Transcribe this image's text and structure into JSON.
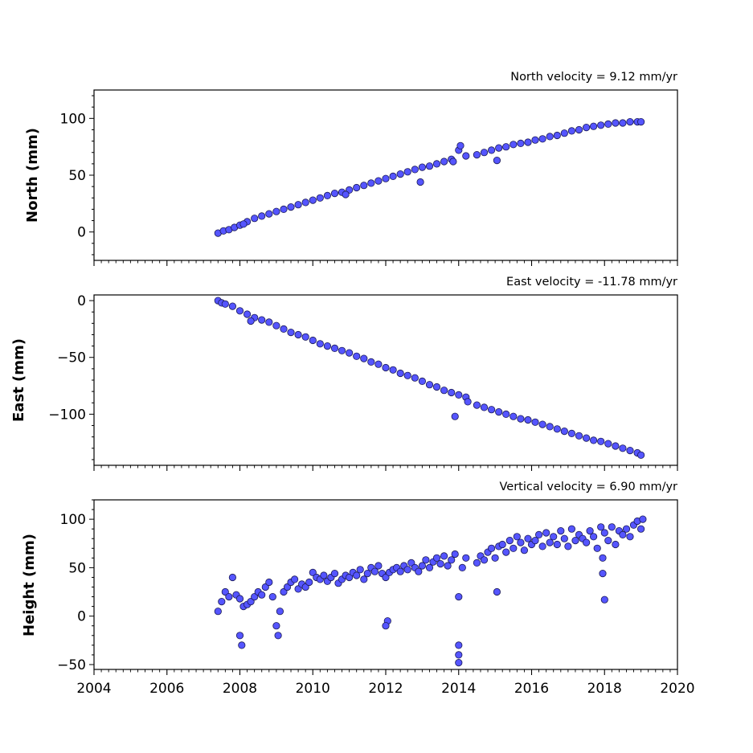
{
  "chart_data": [
    {
      "type": "scatter",
      "title": "North velocity = 9.12 mm/yr",
      "xlabel": "",
      "ylabel": "North (mm)",
      "xlim": [
        2004,
        2020
      ],
      "ylim": [
        -25,
        125
      ],
      "yticks": [
        0,
        50,
        100
      ],
      "xtick_labels_shown": false,
      "marker_color": "#5555ff",
      "marker_edge": "#1a1a55",
      "series": [
        {
          "x": [
            2007.4,
            2007.55,
            2007.7,
            2007.85,
            2008.0,
            2008.2,
            2008.4,
            2008.6,
            2008.8,
            2009.0,
            2009.2,
            2009.4,
            2009.6,
            2009.8,
            2010.0,
            2010.2,
            2010.4,
            2010.6,
            2010.8,
            2011.0,
            2011.2,
            2011.4,
            2011.6,
            2011.8,
            2012.0,
            2012.2,
            2012.4,
            2012.6,
            2012.8,
            2013.0,
            2013.2,
            2013.4,
            2013.6,
            2013.8,
            2014.0,
            2014.05,
            2014.2,
            2014.5,
            2014.7,
            2014.9,
            2015.1,
            2015.3,
            2015.5,
            2015.7,
            2015.9,
            2016.1,
            2016.3,
            2016.5,
            2016.7,
            2016.9,
            2017.1,
            2017.3,
            2017.5,
            2017.7,
            2017.9,
            2018.1,
            2018.3,
            2018.5,
            2018.7,
            2018.9,
            2019.0,
            2008.1,
            2010.9,
            2012.95,
            2015.05,
            2013.85
          ],
          "y": [
            -1,
            1,
            2,
            4,
            6,
            9,
            12,
            14,
            16,
            18,
            20,
            22,
            24,
            26,
            28,
            30,
            32,
            34,
            35,
            37,
            39,
            41,
            43,
            45,
            47,
            49,
            51,
            53,
            55,
            57,
            58,
            60,
            62,
            64,
            72,
            76,
            67,
            68,
            70,
            72,
            74,
            75,
            77,
            78,
            79,
            81,
            82,
            84,
            85,
            87,
            89,
            90,
            92,
            93,
            94,
            95,
            96,
            96,
            97,
            97,
            97,
            7,
            33,
            44,
            63,
            62
          ]
        }
      ]
    },
    {
      "type": "scatter",
      "title": "East velocity = -11.78 mm/yr",
      "xlabel": "",
      "ylabel": "East (mm)",
      "xlim": [
        2004,
        2020
      ],
      "ylim": [
        -145,
        5
      ],
      "yticks": [
        0,
        -50,
        -100
      ],
      "xtick_labels_shown": false,
      "marker_color": "#5555ff",
      "marker_edge": "#1a1a55",
      "series": [
        {
          "x": [
            2007.4,
            2007.5,
            2007.6,
            2007.8,
            2008.0,
            2008.2,
            2008.4,
            2008.6,
            2008.8,
            2009.0,
            2009.2,
            2009.4,
            2009.6,
            2009.8,
            2010.0,
            2010.2,
            2010.4,
            2010.6,
            2010.8,
            2011.0,
            2011.2,
            2011.4,
            2011.6,
            2011.8,
            2012.0,
            2012.2,
            2012.4,
            2012.6,
            2012.8,
            2013.0,
            2013.2,
            2013.4,
            2013.6,
            2013.8,
            2014.0,
            2014.2,
            2014.5,
            2014.7,
            2014.9,
            2015.1,
            2015.3,
            2015.5,
            2015.7,
            2015.9,
            2016.1,
            2016.3,
            2016.5,
            2016.7,
            2016.9,
            2017.1,
            2017.3,
            2017.5,
            2017.7,
            2017.9,
            2018.1,
            2018.3,
            2018.5,
            2018.7,
            2018.9,
            2019.0,
            2008.3,
            2013.9,
            2014.25
          ],
          "y": [
            0,
            -2,
            -3,
            -5,
            -9,
            -12,
            -15,
            -17,
            -19,
            -22,
            -25,
            -28,
            -30,
            -32,
            -35,
            -38,
            -40,
            -42,
            -44,
            -46,
            -49,
            -51,
            -54,
            -56,
            -59,
            -61,
            -64,
            -66,
            -68,
            -71,
            -74,
            -76,
            -79,
            -81,
            -83,
            -85,
            -92,
            -94,
            -96,
            -98,
            -100,
            -102,
            -104,
            -105,
            -107,
            -109,
            -111,
            -113,
            -115,
            -117,
            -119,
            -121,
            -123,
            -124,
            -126,
            -128,
            -130,
            -132,
            -134,
            -136,
            -18,
            -102,
            -89
          ]
        }
      ]
    },
    {
      "type": "scatter",
      "title": "Vertical velocity = 6.90 mm/yr",
      "xlabel": "",
      "ylabel": "Height (mm)",
      "xlim": [
        2004,
        2020
      ],
      "ylim": [
        -55,
        120
      ],
      "yticks": [
        -50,
        0,
        50,
        100
      ],
      "xticks": [
        2004,
        2006,
        2008,
        2010,
        2012,
        2014,
        2016,
        2018,
        2020
      ],
      "xtick_labels_shown": true,
      "marker_color": "#5555ff",
      "marker_edge": "#1a1a55",
      "series": [
        {
          "x": [
            2007.4,
            2007.5,
            2007.6,
            2007.7,
            2007.8,
            2007.9,
            2008.0,
            2008.1,
            2008.2,
            2008.3,
            2008.4,
            2008.5,
            2008.6,
            2008.7,
            2008.8,
            2008.9,
            2009.0,
            2009.05,
            2009.1,
            2009.2,
            2009.3,
            2009.4,
            2009.5,
            2009.6,
            2009.7,
            2009.8,
            2009.9,
            2010.0,
            2010.1,
            2010.2,
            2010.3,
            2010.4,
            2010.5,
            2010.6,
            2010.7,
            2010.8,
            2010.9,
            2011.0,
            2011.1,
            2011.2,
            2011.3,
            2011.4,
            2011.5,
            2011.6,
            2011.7,
            2011.8,
            2011.9,
            2012.0,
            2012.05,
            2012.1,
            2012.2,
            2012.3,
            2012.4,
            2012.5,
            2012.6,
            2012.7,
            2012.8,
            2012.9,
            2013.0,
            2013.1,
            2013.2,
            2013.3,
            2013.4,
            2013.5,
            2013.6,
            2013.7,
            2013.8,
            2013.9,
            2014.0,
            2014.0,
            2014.0,
            2014.1,
            2014.2,
            2014.5,
            2014.6,
            2014.7,
            2014.8,
            2014.9,
            2015.0,
            2015.05,
            2015.1,
            2015.2,
            2015.3,
            2015.4,
            2015.5,
            2015.6,
            2015.7,
            2015.8,
            2015.9,
            2016.0,
            2016.1,
            2016.2,
            2016.3,
            2016.4,
            2016.5,
            2016.6,
            2016.7,
            2016.8,
            2016.9,
            2017.0,
            2017.1,
            2017.2,
            2017.3,
            2017.4,
            2017.5,
            2017.6,
            2017.7,
            2017.8,
            2017.9,
            2017.95,
            2018.0,
            2018.1,
            2018.2,
            2018.3,
            2018.4,
            2018.5,
            2018.6,
            2018.7,
            2018.8,
            2018.9,
            2019.0,
            2019.05,
            2008.0,
            2008.05,
            2012.0,
            2014.0,
            2018.0,
            2017.95
          ],
          "y": [
            5,
            15,
            25,
            20,
            40,
            22,
            18,
            10,
            12,
            15,
            20,
            25,
            22,
            30,
            35,
            20,
            -10,
            -20,
            5,
            25,
            30,
            35,
            38,
            28,
            33,
            30,
            35,
            45,
            40,
            38,
            42,
            36,
            40,
            44,
            34,
            38,
            42,
            40,
            45,
            42,
            48,
            38,
            44,
            50,
            46,
            52,
            44,
            40,
            -5,
            45,
            48,
            50,
            46,
            52,
            48,
            55,
            50,
            46,
            52,
            58,
            50,
            56,
            60,
            54,
            62,
            52,
            58,
            64,
            20,
            -30,
            -48,
            50,
            60,
            55,
            62,
            58,
            66,
            70,
            60,
            25,
            72,
            74,
            66,
            78,
            70,
            82,
            76,
            68,
            80,
            74,
            78,
            84,
            72,
            86,
            76,
            82,
            74,
            88,
            80,
            72,
            90,
            78,
            84,
            80,
            76,
            88,
            82,
            70,
            92,
            60,
            86,
            78,
            92,
            74,
            88,
            84,
            90,
            82,
            94,
            98,
            90,
            100,
            -20,
            -30,
            -10,
            -40,
            17,
            44
          ]
        }
      ]
    }
  ]
}
